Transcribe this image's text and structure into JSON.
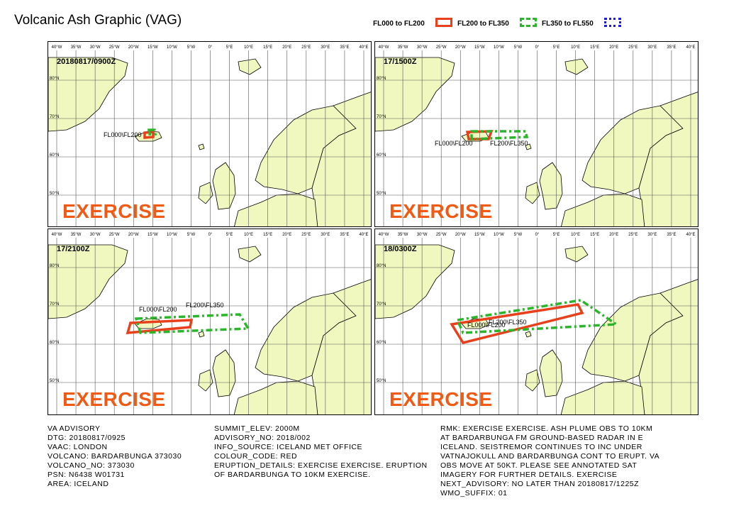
{
  "title": "Volcanic Ash Graphic (VAG)",
  "legend": [
    {
      "label": "FL000 to FL200",
      "color": "#e8401c",
      "style": "solid"
    },
    {
      "label": "FL200 to FL350",
      "color": "#2bb52b",
      "style": "dashed"
    },
    {
      "label": "FL350 to FL550",
      "color": "#1c1ce0",
      "style": "dotted"
    }
  ],
  "map": {
    "lon_ticks": [
      "40°W",
      "35°W",
      "30°W",
      "25°W",
      "20°W",
      "15°W",
      "10°W",
      "5°W",
      "0°",
      "5°E",
      "10°E",
      "15°E",
      "20°E",
      "25°E",
      "30°E",
      "35°E",
      "40°E"
    ],
    "lat_labels": [
      "80°N",
      "70°N",
      "60°N",
      "50°N"
    ],
    "land_color": "#f0f8c0",
    "exercise_text": "EXERCISE"
  },
  "panels": [
    {
      "time": "20180817/0900Z",
      "areas": [
        {
          "label": "FL000\\FL200",
          "color": "#e8401c",
          "style": "solid"
        },
        {
          "label": "FL200\\FL350",
          "color": "#2bb52b",
          "style": "dashed"
        }
      ]
    },
    {
      "time": "17/1500Z",
      "areas": [
        {
          "label": "FL000\\FL200",
          "color": "#e8401c",
          "style": "solid"
        },
        {
          "label": "FL200\\FL350",
          "color": "#2bb52b",
          "style": "dashed"
        }
      ]
    },
    {
      "time": "17/2100Z",
      "areas": [
        {
          "label": "FL000\\FL200",
          "color": "#e8401c",
          "style": "solid"
        },
        {
          "label": "FL200\\FL350",
          "color": "#2bb52b",
          "style": "dashed"
        }
      ]
    },
    {
      "time": "18/0300Z",
      "areas": [
        {
          "label": "FL000\\FL200",
          "color": "#e8401c",
          "style": "solid"
        },
        {
          "label": "FL200\\FL350",
          "color": "#2bb52b",
          "style": "dashed"
        }
      ]
    }
  ],
  "advisory_col1": [
    "VA ADVISORY",
    "DTG: 20180817/0925",
    "VAAC: LONDON",
    "VOLCANO: BARDARBUNGA 373030",
    "VOLCANO_NO: 373030",
    "PSN: N6438 W01731",
    "AREA: ICELAND"
  ],
  "advisory_col2": [
    "SUMMIT_ELEV: 2000M",
    "ADVISORY_NO: 2018/002",
    "INFO_SOURCE: ICELAND MET OFFICE",
    "COLOUR_CODE: RED",
    "ERUPTION_DETAILS: EXERCISE EXERCISE. ERUPTION",
    "OF BARDARBUNGA TO 10KM EXERCISE."
  ],
  "advisory_col3": [
    "RMK: EXERCISE EXERCISE. ASH PLUME OBS TO 10KM",
    "AT BARDARBUNGA FM GROUND-BASED RADAR IN E",
    "ICELAND. SEISTREMOR CONTINUES TO INC UNDER",
    "VATNAJOKULL AND BARDARBUNGA CONT TO ERUPT. VA",
    "OBS MOVE AT 50KT. PLEASE SEE ANNOTATED SAT",
    "IMAGERY FOR FURTHER DETAILS. EXERCISE",
    "NEXT_ADVISORY: NO LATER THAN 20180817/1225Z",
    "WMO_SUFFIX: 01"
  ]
}
